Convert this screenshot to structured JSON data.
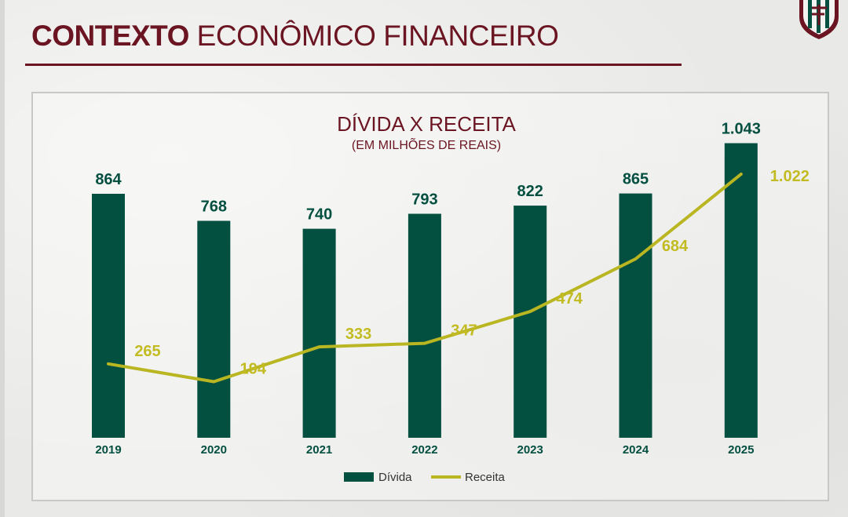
{
  "header": {
    "title_bold": "CONTEXTO",
    "title_rest": " ECONÔMICO FINANCEIRO"
  },
  "logo": {
    "icon": "fluminense-crest-icon"
  },
  "colors": {
    "brand": "#6b1522",
    "bar": "#034f40",
    "line": "#b9b622",
    "bar_label": "#034f40",
    "line_label": "#c2bb22"
  },
  "chart_data": {
    "type": "bar",
    "title": "DÍVIDA X RECEITA",
    "subtitle": "(EM MILHÕES DE REAIS)",
    "categories": [
      "2019",
      "2020",
      "2021",
      "2022",
      "2023",
      "2024",
      "2025"
    ],
    "series": [
      {
        "name": "Dívida",
        "type": "bar",
        "values": [
          864,
          768,
          740,
          793,
          822,
          865,
          1043
        ],
        "labels": [
          "864",
          "768",
          "740",
          "793",
          "822",
          "865",
          "1.043"
        ]
      },
      {
        "name": "Receita",
        "type": "line",
        "values": [
          265,
          194,
          333,
          347,
          474,
          684,
          1022
        ],
        "labels": [
          "265",
          "194",
          "333",
          "347",
          "474",
          "684",
          "1.022"
        ]
      }
    ],
    "legend_position": "bottom",
    "grid": false
  }
}
